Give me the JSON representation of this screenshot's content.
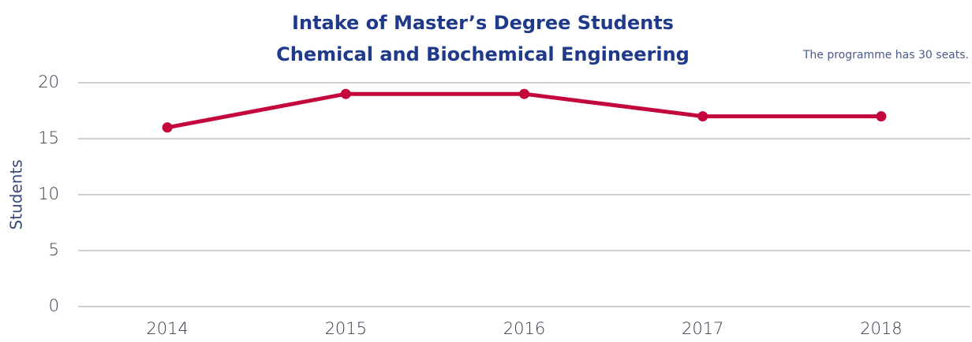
{
  "chart_data": {
    "type": "line",
    "title": [
      "Intake of Master’s Degree Students",
      "Chemical and Biochemical Engineering"
    ],
    "annotation": "The programme has 30 seats.",
    "y_label": "Students",
    "categories": [
      "2014",
      "2015",
      "2016",
      "2017",
      "2018"
    ],
    "series": [
      {
        "name": "Students",
        "color": "#c3063b",
        "values": [
          16,
          19,
          19,
          17,
          17
        ]
      }
    ],
    "ylim": [
      0,
      20
    ],
    "yticks": [
      0,
      5,
      10,
      15,
      20
    ],
    "grid": true
  }
}
